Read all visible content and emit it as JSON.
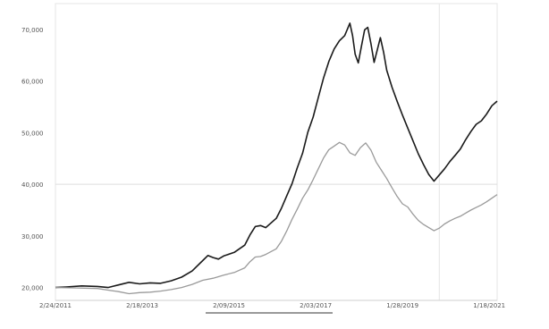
{
  "chart_data": {
    "type": "line",
    "title": "",
    "xlabel": "",
    "ylabel": "",
    "x_tick_labels": [
      "2/24/2011",
      "2/18/2013",
      "2/09/2015",
      "2/03/2017",
      "1/28/2019",
      "1/18/2021"
    ],
    "y_tick_labels": [
      "20,000",
      "30,000",
      "40,000",
      "50,000",
      "60,000",
      "70,000"
    ],
    "ylim": [
      17500,
      75000
    ],
    "grid": true,
    "legend_position": "bottom",
    "legend_label": "",
    "series": [
      {
        "color": "#1a1a1a",
        "values": [
          [
            0,
            20000
          ],
          [
            2,
            20100
          ],
          [
            5,
            20300
          ],
          [
            8,
            20200
          ],
          [
            10,
            20000
          ],
          [
            12,
            20500
          ],
          [
            14,
            21000
          ],
          [
            16,
            20700
          ],
          [
            18,
            20900
          ],
          [
            20,
            20800
          ],
          [
            22,
            21300
          ],
          [
            24,
            22000
          ],
          [
            26,
            23200
          ],
          [
            28,
            25200
          ],
          [
            29,
            26200
          ],
          [
            30,
            25800
          ],
          [
            31,
            25500
          ],
          [
            32,
            26100
          ],
          [
            34,
            26800
          ],
          [
            36,
            28200
          ],
          [
            37,
            30200
          ],
          [
            38,
            31800
          ],
          [
            39,
            32000
          ],
          [
            40,
            31600
          ],
          [
            42,
            33400
          ],
          [
            43,
            35400
          ],
          [
            44,
            37800
          ],
          [
            45,
            40100
          ],
          [
            46,
            43200
          ],
          [
            47,
            46000
          ],
          [
            48,
            50100
          ],
          [
            49,
            53000
          ],
          [
            50,
            56800
          ],
          [
            51,
            60600
          ],
          [
            52,
            63800
          ],
          [
            53,
            66200
          ],
          [
            54,
            67800
          ],
          [
            55,
            68800
          ],
          [
            55.5,
            70000
          ],
          [
            56,
            71200
          ],
          [
            56.5,
            68800
          ],
          [
            57,
            65200
          ],
          [
            57.6,
            63500
          ],
          [
            58.2,
            66800
          ],
          [
            58.8,
            69900
          ],
          [
            59.4,
            70400
          ],
          [
            60,
            67200
          ],
          [
            60.6,
            63600
          ],
          [
            61.2,
            66000
          ],
          [
            61.8,
            68400
          ],
          [
            62.4,
            65600
          ],
          [
            63,
            62100
          ],
          [
            64,
            58800
          ],
          [
            65,
            56000
          ],
          [
            66,
            53400
          ],
          [
            67,
            50900
          ],
          [
            68,
            48400
          ],
          [
            69,
            45900
          ],
          [
            70,
            43800
          ],
          [
            71,
            41900
          ],
          [
            72,
            40600
          ],
          [
            73,
            41800
          ],
          [
            74,
            43000
          ],
          [
            75,
            44400
          ],
          [
            76,
            45600
          ],
          [
            77,
            46800
          ],
          [
            78,
            48600
          ],
          [
            79,
            50200
          ],
          [
            80,
            51600
          ],
          [
            81,
            52300
          ],
          [
            82,
            53600
          ],
          [
            83,
            55200
          ],
          [
            84,
            56100
          ]
        ]
      },
      {
        "color": "#9a9a9a",
        "values": [
          [
            0,
            20000
          ],
          [
            4,
            19900
          ],
          [
            8,
            19800
          ],
          [
            10,
            19500
          ],
          [
            12,
            19200
          ],
          [
            14,
            18800
          ],
          [
            16,
            19000
          ],
          [
            18,
            19100
          ],
          [
            20,
            19300
          ],
          [
            22,
            19600
          ],
          [
            24,
            20000
          ],
          [
            26,
            20600
          ],
          [
            28,
            21400
          ],
          [
            30,
            21800
          ],
          [
            32,
            22400
          ],
          [
            34,
            22900
          ],
          [
            36,
            23800
          ],
          [
            37,
            25000
          ],
          [
            38,
            25900
          ],
          [
            39,
            26000
          ],
          [
            40,
            26400
          ],
          [
            42,
            27500
          ],
          [
            43,
            29000
          ],
          [
            44,
            31000
          ],
          [
            45,
            33200
          ],
          [
            46,
            35200
          ],
          [
            47,
            37300
          ],
          [
            48,
            38900
          ],
          [
            49,
            40900
          ],
          [
            50,
            43000
          ],
          [
            51,
            45100
          ],
          [
            52,
            46700
          ],
          [
            53,
            47400
          ],
          [
            54,
            48100
          ],
          [
            55,
            47600
          ],
          [
            56,
            46100
          ],
          [
            57,
            45600
          ],
          [
            58,
            47100
          ],
          [
            59,
            48000
          ],
          [
            60,
            46600
          ],
          [
            61,
            44300
          ],
          [
            62,
            42700
          ],
          [
            63,
            41100
          ],
          [
            64,
            39300
          ],
          [
            65,
            37600
          ],
          [
            66,
            36200
          ],
          [
            67,
            35600
          ],
          [
            68,
            34200
          ],
          [
            69,
            33000
          ],
          [
            70,
            32200
          ],
          [
            71,
            31600
          ],
          [
            72,
            31000
          ],
          [
            73,
            31500
          ],
          [
            74,
            32300
          ],
          [
            75,
            32900
          ],
          [
            76,
            33400
          ],
          [
            77,
            33800
          ],
          [
            78,
            34400
          ],
          [
            79,
            35000
          ],
          [
            80,
            35500
          ],
          [
            81,
            36000
          ],
          [
            82,
            36600
          ],
          [
            83,
            37300
          ],
          [
            84,
            38000
          ]
        ]
      }
    ]
  }
}
